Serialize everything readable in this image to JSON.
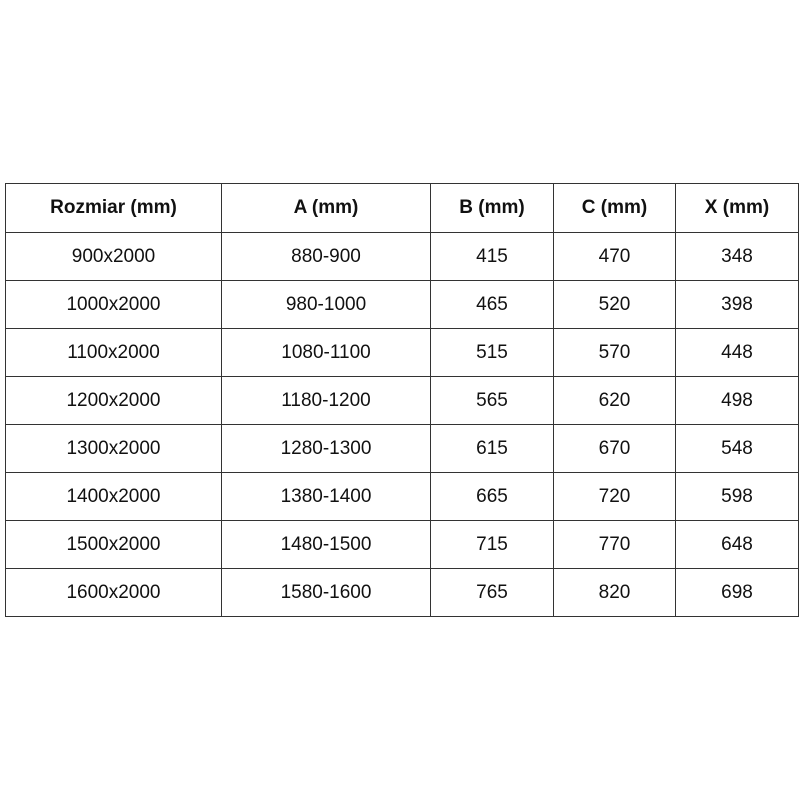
{
  "table": {
    "headers": [
      "Rozmiar (mm)",
      "A (mm)",
      "B (mm)",
      "C (mm)",
      "X (mm)"
    ],
    "rows": [
      [
        "900x2000",
        "880-900",
        "415",
        "470",
        "348"
      ],
      [
        "1000x2000",
        "980-1000",
        "465",
        "520",
        "398"
      ],
      [
        "1100x2000",
        "1080-1100",
        "515",
        "570",
        "448"
      ],
      [
        "1200x2000",
        "1180-1200",
        "565",
        "620",
        "498"
      ],
      [
        "1300x2000",
        "1280-1300",
        "615",
        "670",
        "548"
      ],
      [
        "1400x2000",
        "1380-1400",
        "665",
        "720",
        "598"
      ],
      [
        "1500x2000",
        "1480-1500",
        "715",
        "770",
        "648"
      ],
      [
        "1600x2000",
        "1580-1600",
        "765",
        "820",
        "698"
      ]
    ]
  }
}
